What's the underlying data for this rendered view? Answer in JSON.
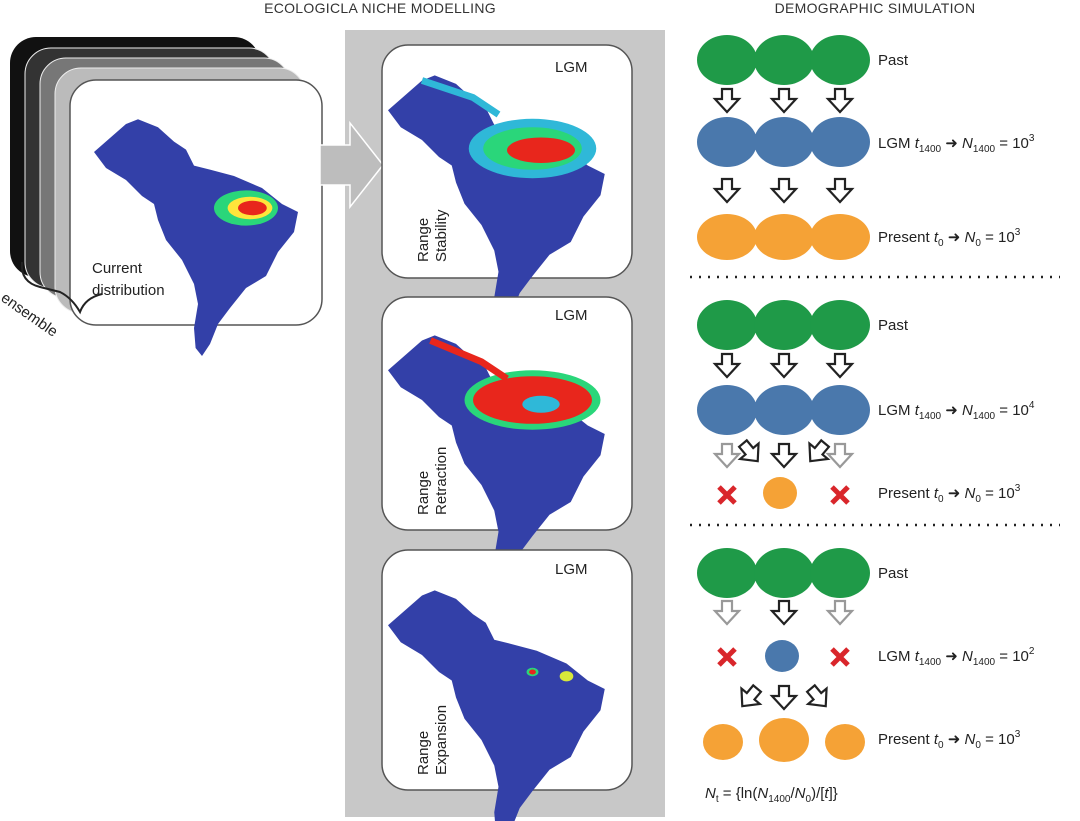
{
  "headers": {
    "left": "ECOLOGICLA NICHE MODELLING",
    "right": "DEMOGRAPHIC SIMULATION"
  },
  "current": {
    "line1": "Current",
    "line2": "distribution",
    "ensemble": "ensemble"
  },
  "cards": [
    {
      "tag": "LGM",
      "line1": "Range",
      "line2": "Stability"
    },
    {
      "tag": "LGM",
      "line1": "Range",
      "line2": "Retraction"
    },
    {
      "tag": "LGM",
      "line1": "Range",
      "line2": "Expansion"
    }
  ],
  "colors": {
    "past": "#1f9a48",
    "lgm": "#4a78ac",
    "present": "#f5a236",
    "extinct": "#d9262b",
    "panel": "#c8c8c8"
  },
  "scenarios": [
    {
      "past": "Past",
      "lgm": {
        "a": "LGM ",
        "t": "t",
        "tsub": "1400",
        "n": "N",
        "nsub": "1400",
        "eq": " = 10",
        "exp": "3"
      },
      "present": {
        "a": "Present ",
        "t": "t",
        "tsub": "0",
        "n": "N",
        "nsub": "0",
        "eq": " = 10",
        "exp": "3"
      }
    },
    {
      "past": "Past",
      "lgm": {
        "a": "LGM ",
        "t": "t",
        "tsub": "1400",
        "n": "N",
        "nsub": "1400",
        "eq": " = 10",
        "exp": "4"
      },
      "present": {
        "a": "Present ",
        "t": "t",
        "tsub": "0",
        "n": "N",
        "nsub": "0",
        "eq": " = 10",
        "exp": "3"
      }
    },
    {
      "past": "Past",
      "lgm": {
        "a": "LGM ",
        "t": "t",
        "tsub": "1400",
        "n": "N",
        "nsub": "1400",
        "eq": " = 10",
        "exp": "2"
      },
      "present": {
        "a": "Present ",
        "t": "t",
        "tsub": "0",
        "n": "N",
        "nsub": "0",
        "eq": " = 10",
        "exp": "3"
      }
    }
  ],
  "formula": {
    "n": "N",
    "nsub": "t",
    "a": " = {ln(",
    "n2": "N",
    "n2sub": "1400",
    "b": "/",
    "n3": "N",
    "n3sub": "0",
    "c": ")/[",
    "t": "t",
    "d": "]}"
  }
}
